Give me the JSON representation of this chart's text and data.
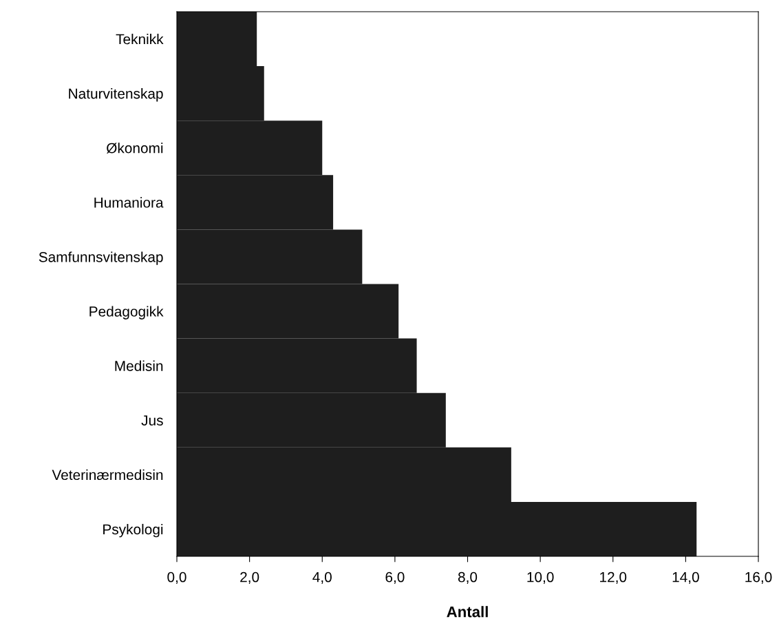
{
  "chart_data": {
    "type": "bar",
    "orientation": "horizontal",
    "xlabel": "Antall",
    "categories": [
      "Teknikk",
      "Naturvitenskap",
      "Økonomi",
      "Humaniora",
      "Samfunnsvitenskap",
      "Pedagogikk",
      "Medisin",
      "Jus",
      "Veterinærmedisin",
      "Psykologi"
    ],
    "values": [
      2.2,
      2.4,
      4.0,
      4.3,
      5.1,
      6.1,
      6.6,
      7.4,
      9.2,
      14.3
    ],
    "color": "#1e1e1e",
    "xlim": [
      0,
      16
    ],
    "xticks": [
      {
        "value": 0,
        "label": "0,0"
      },
      {
        "value": 2,
        "label": "2,0"
      },
      {
        "value": 4,
        "label": "4,0"
      },
      {
        "value": 6,
        "label": "6,0"
      },
      {
        "value": 8,
        "label": "8,0"
      },
      {
        "value": 10,
        "label": "10,0"
      },
      {
        "value": 12,
        "label": "12,0"
      },
      {
        "value": 14,
        "label": "14,0"
      },
      {
        "value": 16,
        "label": "16,0"
      }
    ],
    "grid": false,
    "legend": false
  }
}
